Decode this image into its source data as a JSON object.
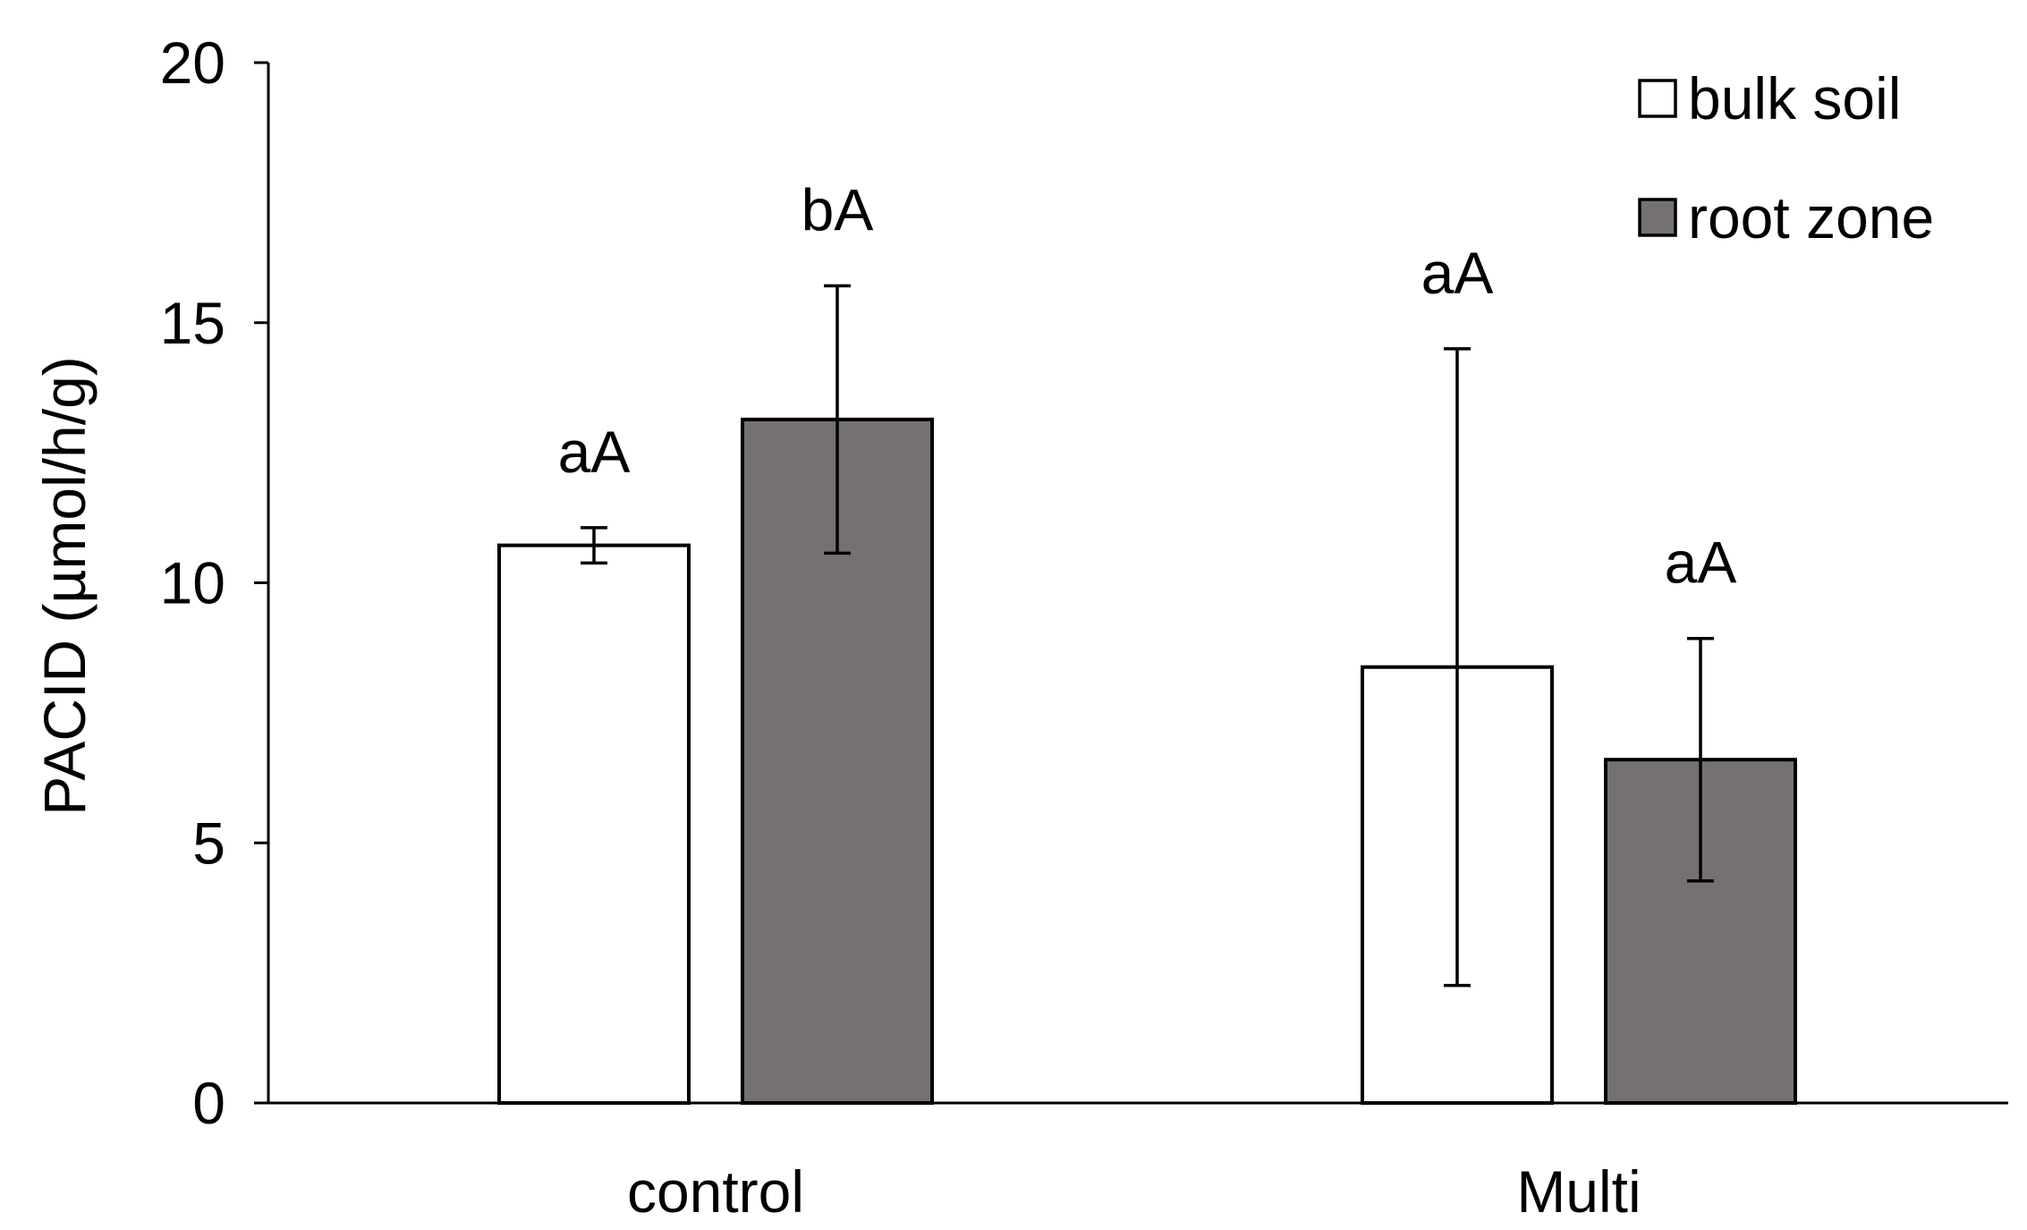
{
  "chart_data": {
    "type": "bar",
    "title": "",
    "xlabel": "",
    "ylabel": "PACID (µmol/h/g)",
    "ylim": [
      0,
      20
    ],
    "yticks": [
      0,
      5,
      10,
      15,
      20
    ],
    "grid": false,
    "legend_position": "top-right",
    "categories": [
      "control",
      "Multi"
    ],
    "series": [
      {
        "name": "bulk soil",
        "color": "#ffffff",
        "values": [
          10.72,
          8.38
        ],
        "errors": [
          0.34,
          6.12
        ],
        "labels": [
          "aA",
          "aA"
        ]
      },
      {
        "name": "root zone",
        "color": "#767171",
        "values": [
          13.14,
          6.6
        ],
        "errors": [
          2.57,
          2.33
        ],
        "labels": [
          "bA",
          "aA"
        ]
      }
    ]
  }
}
